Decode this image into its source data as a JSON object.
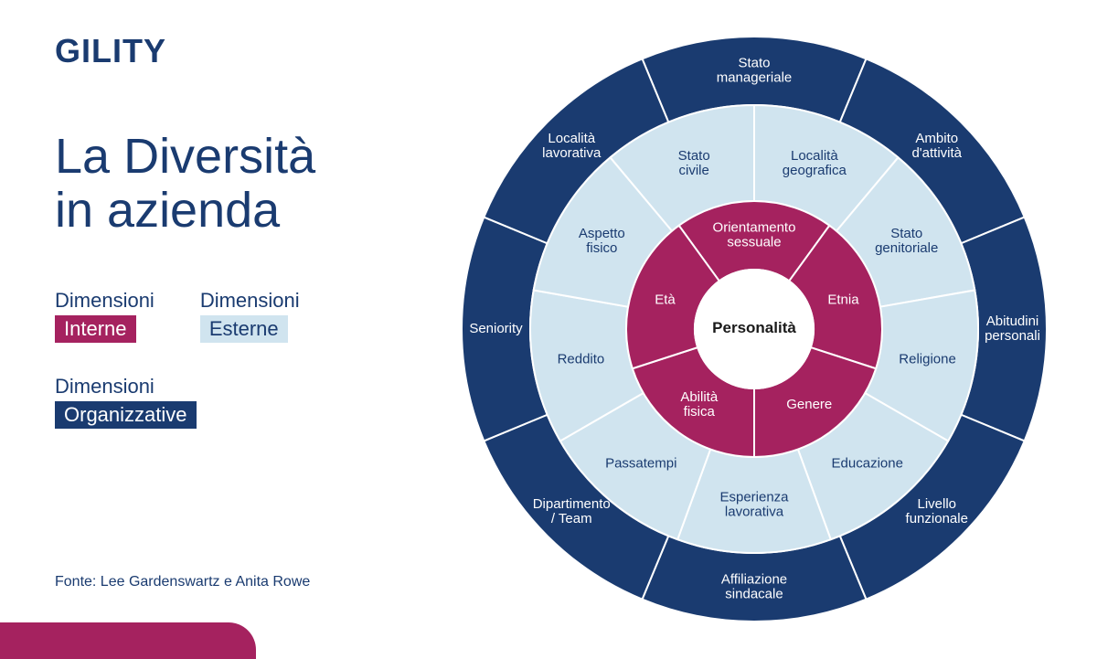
{
  "logo": "GILITY",
  "title_line1": "La Diversità",
  "title_line2": "in azienda",
  "legend": {
    "category_word": "Dimensioni",
    "items": [
      {
        "label": "Interne",
        "bg": "#a5225f",
        "fg": "#ffffff"
      },
      {
        "label": "Esterne",
        "bg": "#d0e4ef",
        "fg": "#1a3b70"
      },
      {
        "label": "Organizzative",
        "bg": "#1a3b70",
        "fg": "#ffffff"
      }
    ]
  },
  "source": "Fonte: Lee Gardenswartz e Anita Rowe",
  "wheel": {
    "center_label": "Personalità",
    "colors": {
      "outer_fill": "#1a3b70",
      "middle_fill": "#d0e4ef",
      "inner_fill": "#a5225f",
      "center_fill": "#ffffff",
      "divider": "#ffffff",
      "outer_text": "#ffffff",
      "middle_text": "#1a3b70",
      "inner_text": "#ffffff"
    },
    "radii": {
      "r_outer": 320,
      "r_mid_out": 245,
      "r_mid_in": 140,
      "r_center": 65
    },
    "outer": [
      "Stato manageriale",
      "Ambito d'attività",
      "Abitudini personali",
      "Livello funzionale",
      "Affiliazione sindacale",
      "Dipartimento / Team",
      "Seniority",
      "Località lavorativa"
    ],
    "middle": [
      "Stato civile",
      "Località geografica",
      "Stato genitoriale",
      "Religione",
      "Educazione",
      "Esperienza lavorativa",
      "Passatempi",
      "Reddito",
      "Aspetto fisico"
    ],
    "inner": [
      "Orientamento sessuale",
      "Etnia",
      "Genere",
      "Abilità fisica",
      "Età"
    ]
  }
}
